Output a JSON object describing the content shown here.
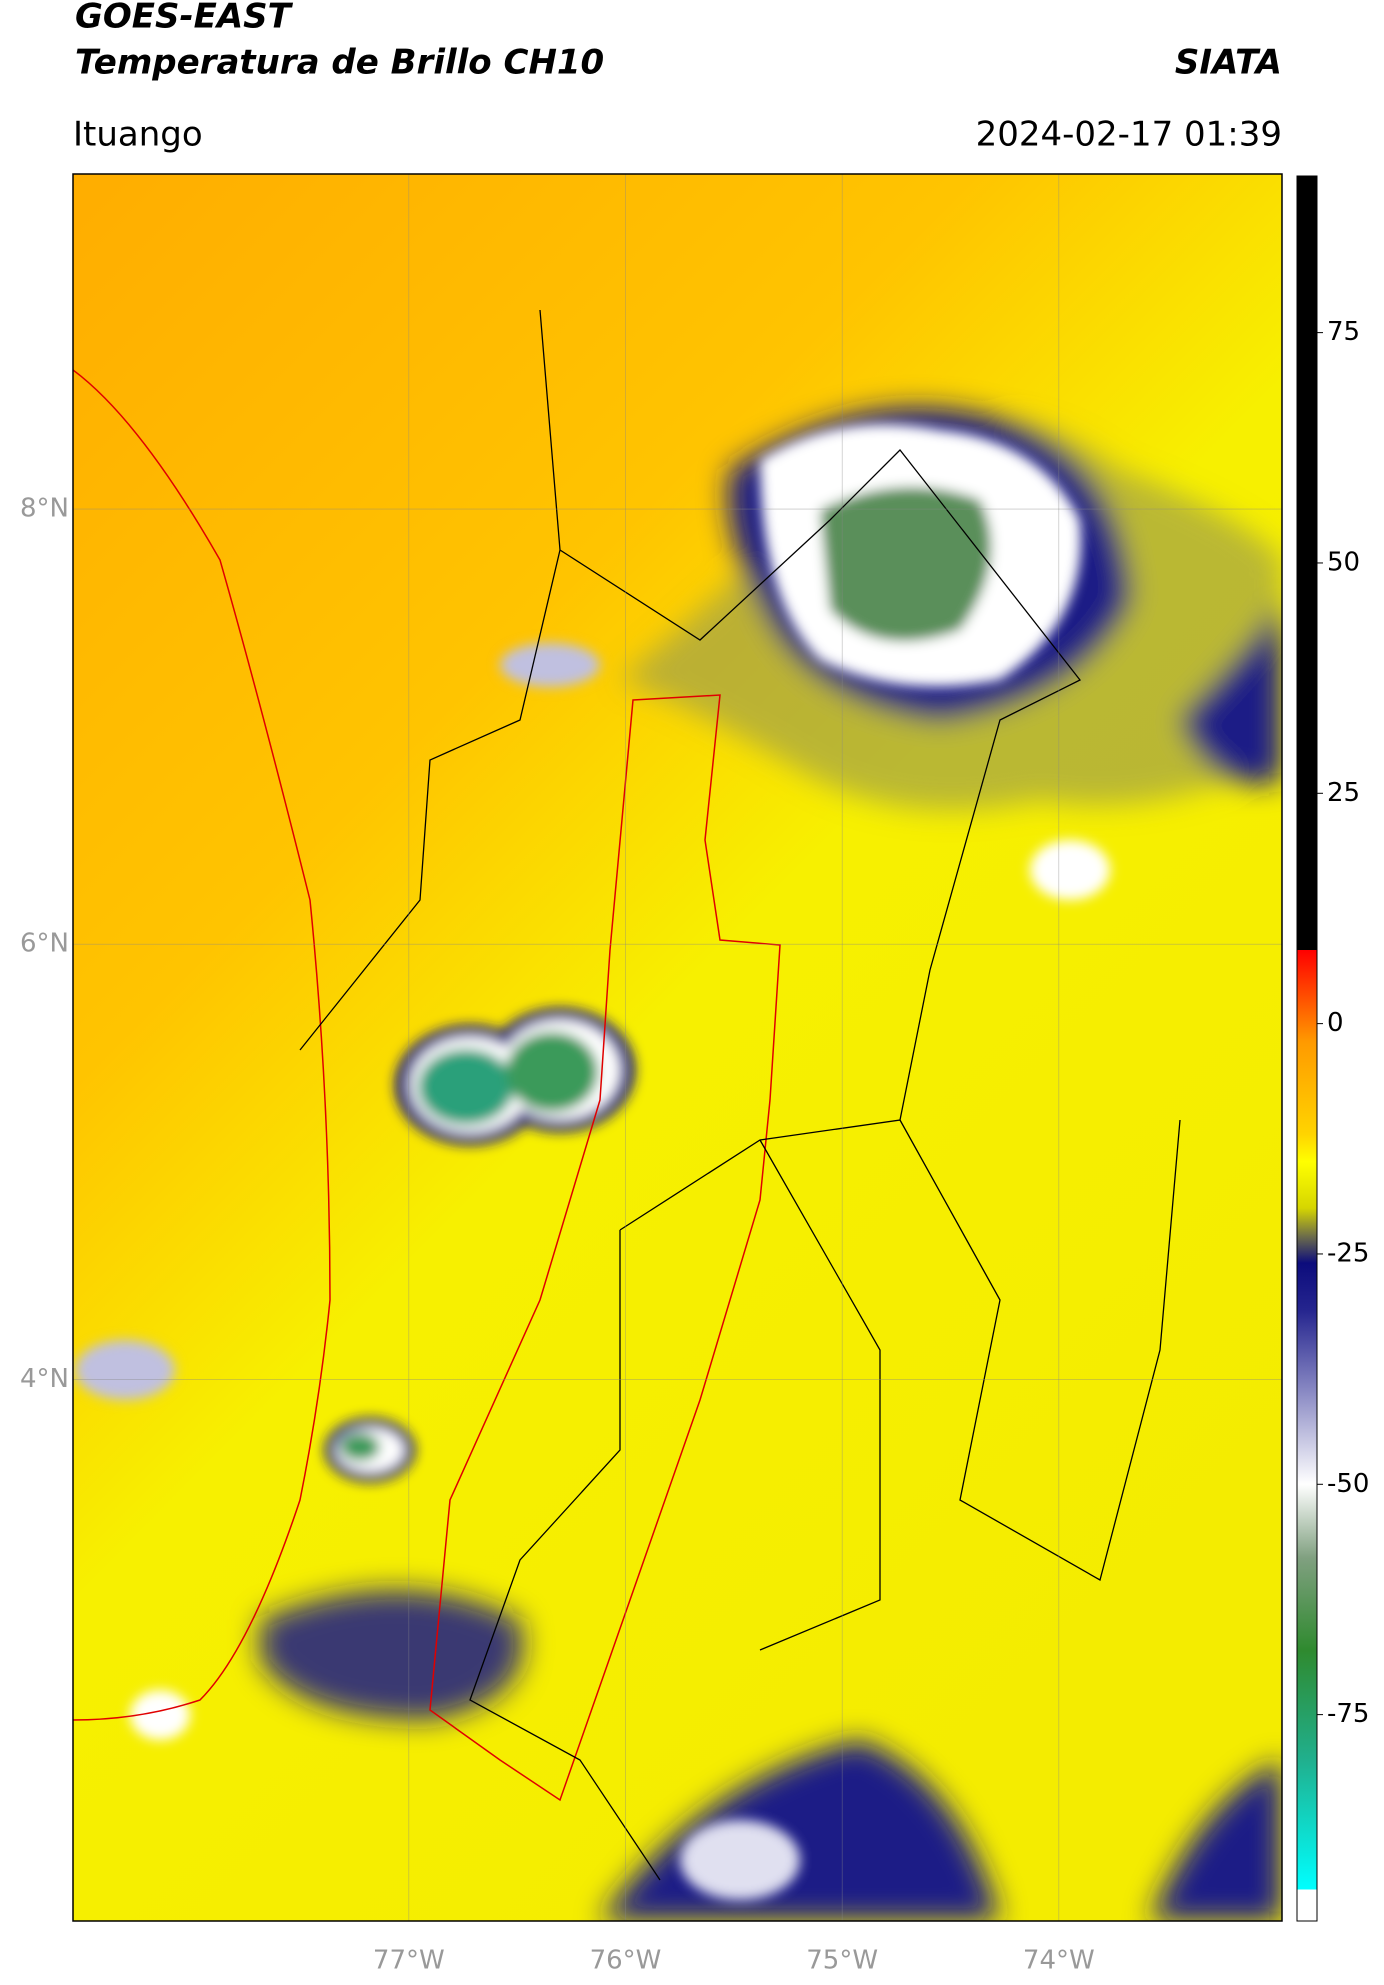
{
  "header": {
    "title": "GOES-EAST",
    "subtitle": "Temperatura de Brillo CH10",
    "source": "SIATA",
    "location": "Ituango",
    "datetime": "2024-02-17 01:39"
  },
  "map": {
    "lonlim": [
      -78.55,
      -72.97
    ],
    "latlim": [
      1.51,
      9.54
    ],
    "lat_ticks": [
      {
        "value": 8,
        "label": "8°N"
      },
      {
        "value": 6,
        "label": "6°N"
      },
      {
        "value": 4,
        "label": "4°N"
      }
    ],
    "lon_ticks": [
      {
        "value": -77,
        "label": "77°W"
      },
      {
        "value": -76,
        "label": "76°W"
      },
      {
        "value": -75,
        "label": "75°W"
      },
      {
        "value": -74,
        "label": "74°W"
      }
    ],
    "grid": true
  },
  "colorbar": {
    "lim": [
      -97.4,
      92
    ],
    "ticks": [
      75,
      50,
      25,
      0,
      -25,
      -50,
      -75
    ],
    "colormap": [
      {
        "value": 92,
        "color": "#000000"
      },
      {
        "value": 8,
        "color": "#000000"
      },
      {
        "value": 8,
        "color": "#ff0000"
      },
      {
        "value": -2,
        "color": "#ff9a00"
      },
      {
        "value": -12,
        "color": "#ffd400"
      },
      {
        "value": -15,
        "color": "#ffff00"
      },
      {
        "value": -20,
        "color": "#d6d600"
      },
      {
        "value": -23,
        "color": "#707048"
      },
      {
        "value": -26,
        "color": "#0c0c7c"
      },
      {
        "value": -31,
        "color": "#24248e"
      },
      {
        "value": -40,
        "color": "#8a8ac4"
      },
      {
        "value": -50,
        "color": "#ffffff"
      },
      {
        "value": -58,
        "color": "#80a080"
      },
      {
        "value": -68,
        "color": "#2f8a2f"
      },
      {
        "value": -80,
        "color": "#20b08e"
      },
      {
        "value": -94,
        "color": "#00ffff"
      },
      {
        "value": -94,
        "color": "#ffffff"
      },
      {
        "value": -97.4,
        "color": "#ffffff"
      }
    ]
  }
}
